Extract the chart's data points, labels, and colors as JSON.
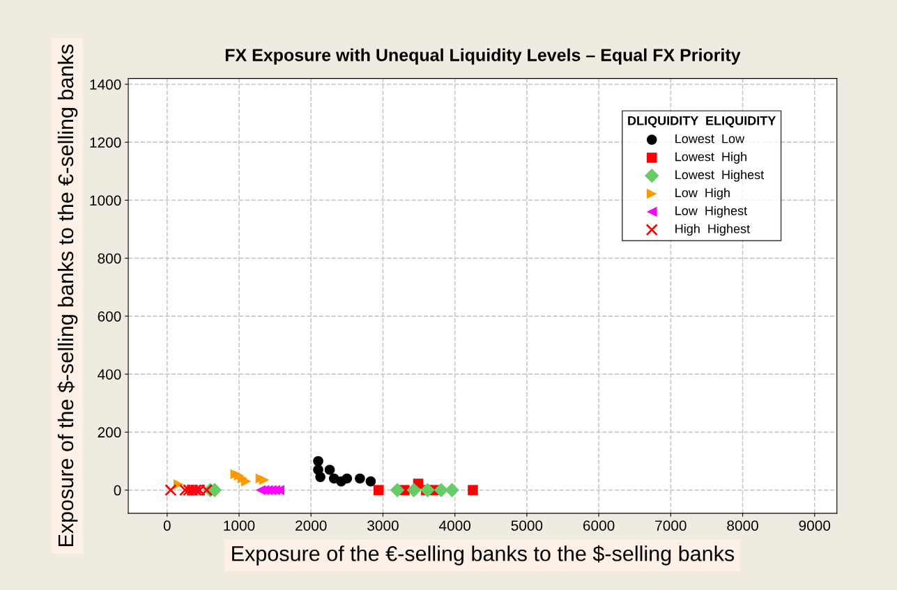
{
  "chart_data": {
    "type": "scatter",
    "title": "FX Exposure with Unequal Liquidity Levels – Equal FX Priority",
    "xlabel": "Exposure of the €-selling banks to the $-selling banks",
    "ylabel": "Exposure of the $-selling banks to the €-selling banks",
    "legend_title": "DLIQUIDITY  ELIQUIDITY",
    "legend": "top right",
    "grid": true,
    "line_style": "dashed",
    "xlim": [
      -540,
      9310
    ],
    "ylim": [
      -80,
      1420
    ],
    "xticks": [
      0,
      1000,
      2000,
      3000,
      4000,
      5000,
      6000,
      7000,
      8000,
      9000
    ],
    "yticks": [
      0,
      200,
      400,
      600,
      800,
      1000,
      1200,
      1400
    ],
    "series": [
      {
        "name": "Lowest  Low",
        "color": "#000000",
        "marker": "circle",
        "x": [
          2100,
          2100,
          2130,
          2260,
          2320,
          2420,
          2500,
          2680,
          2830
        ],
        "values": [
          100,
          70,
          45,
          70,
          40,
          30,
          40,
          40,
          30
        ]
      },
      {
        "name": "Lowest  High",
        "color": "#ff0000",
        "marker": "square",
        "x": [
          2940,
          3300,
          3490,
          3600,
          3720,
          4250
        ],
        "values": [
          0,
          0,
          22,
          0,
          0,
          0
        ]
      },
      {
        "name": "Lowest  Highest",
        "color": "#66cc66",
        "marker": "diamond",
        "x": [
          600,
          660,
          3200,
          3430,
          3620,
          3810,
          3960
        ],
        "values": [
          0,
          0,
          0,
          0,
          0,
          0,
          0
        ]
      },
      {
        "name": "Low  High",
        "color": "#ff9900",
        "marker": "triangle_right",
        "x": [
          160,
          950,
          1000,
          1050,
          1100,
          1300,
          1350
        ],
        "values": [
          20,
          55,
          50,
          40,
          30,
          40,
          35
        ]
      },
      {
        "name": "Low  Highest",
        "color": "#ff00ff",
        "marker": "triangle_left",
        "x": [
          300,
          350,
          400,
          1300,
          1350,
          1400,
          1450,
          1500,
          1560
        ],
        "values": [
          0,
          0,
          0,
          0,
          0,
          0,
          0,
          0,
          0
        ]
      },
      {
        "name": "High  Highest",
        "color": "#ff0000",
        "marker": "cross",
        "x": [
          50,
          250,
          300,
          350,
          400,
          450,
          550
        ],
        "values": [
          0,
          0,
          0,
          0,
          0,
          0,
          0
        ]
      }
    ]
  }
}
